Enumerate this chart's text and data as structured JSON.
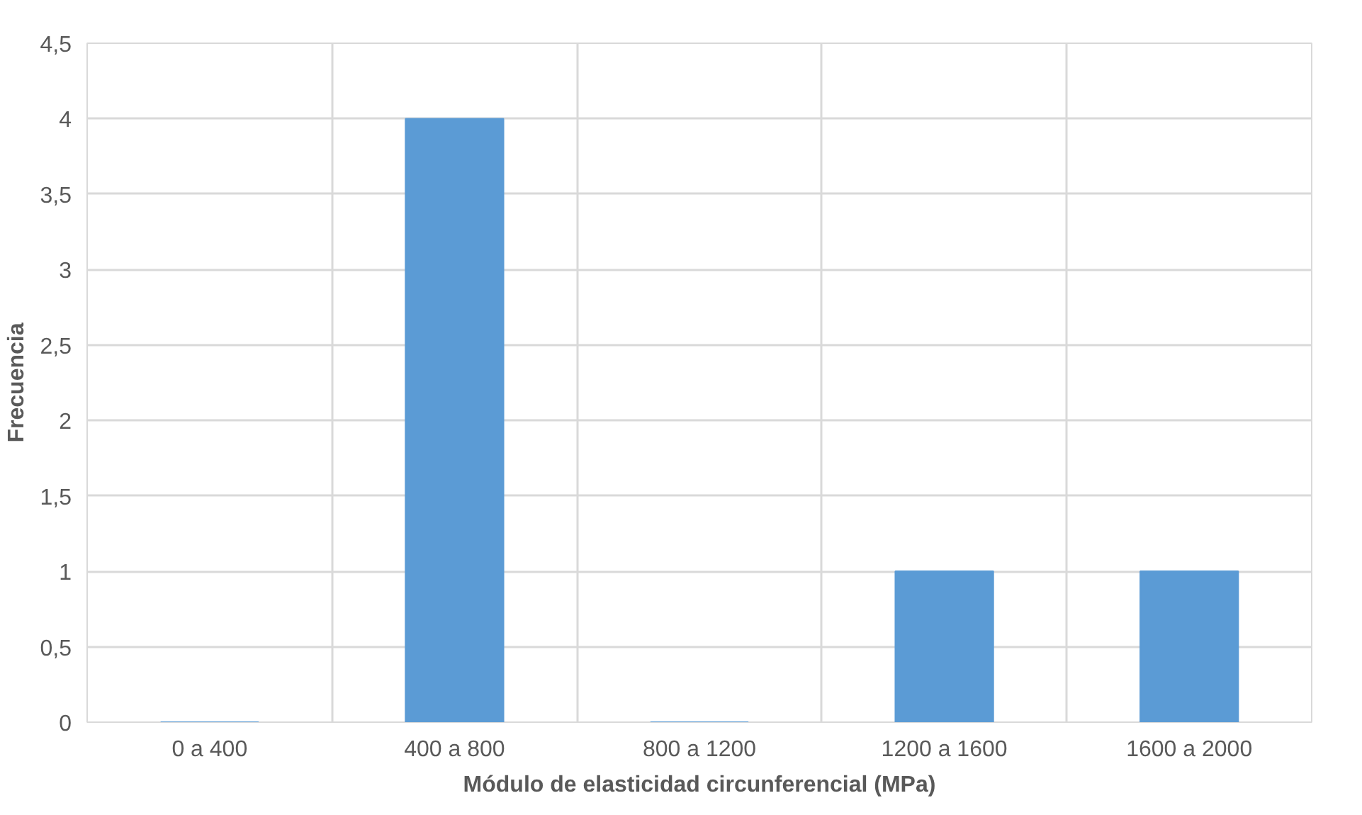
{
  "chart_data": {
    "type": "bar",
    "xlabel": "Módulo de elasticidad circunferencial (MPa)",
    "ylabel": "Frecuencia",
    "categories": [
      "0 a 400",
      "400 a 800",
      "800 a 1200",
      "1200 a 1600",
      "1600 a 2000"
    ],
    "values": [
      0,
      4,
      0,
      1,
      1
    ],
    "color": "#5b9bd5",
    "ylim": [
      0,
      4.5
    ],
    "yticks": [
      0,
      {
        "value": 0.5,
        "label": "0,5"
      },
      1,
      {
        "value": 1.5,
        "label": "1,5"
      },
      2,
      {
        "value": 2.5,
        "label": "2,5"
      },
      3,
      {
        "value": 3.5,
        "label": "3,5"
      },
      4,
      {
        "value": 4.5,
        "label": "4,5"
      }
    ],
    "grid": true
  }
}
